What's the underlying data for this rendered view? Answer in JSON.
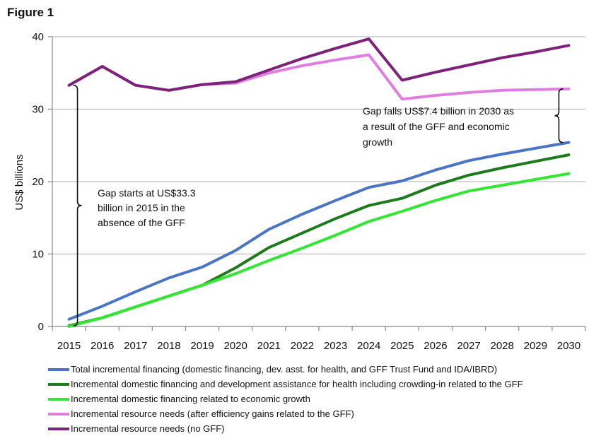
{
  "figure_label": "Figure 1",
  "chart_data": {
    "type": "line",
    "ylabel": "US$ billions",
    "xlabel": "",
    "ylim": [
      0,
      40
    ],
    "yticks": [
      0,
      10,
      20,
      30,
      40
    ],
    "grid": true,
    "legend_position": "bottom",
    "x": [
      "2015",
      "2016",
      "2017",
      "2018",
      "2019",
      "2020",
      "2021",
      "2022",
      "2023",
      "2024",
      "2025",
      "2026",
      "2027",
      "2028",
      "2029",
      "2030"
    ],
    "series": [
      {
        "name": "Total incremental financing (domestic financing, dev. asst. for health, and GFF Trust Fund and IDA/IBRD)",
        "color": "#4a74c4",
        "values": [
          1.0,
          2.8,
          4.8,
          6.7,
          8.2,
          10.5,
          13.4,
          15.5,
          17.4,
          19.2,
          20.1,
          21.6,
          22.9,
          23.8,
          24.6,
          25.4
        ]
      },
      {
        "name": "Incremental domestic financing and development assistance for health including crowding-in related to the GFF",
        "color": "#1d7a1d",
        "values": [
          0.1,
          1.2,
          2.7,
          4.2,
          5.7,
          8.1,
          10.9,
          12.9,
          14.9,
          16.7,
          17.7,
          19.5,
          20.9,
          21.9,
          22.8,
          23.7
        ]
      },
      {
        "name": "Incremental domestic financing related to economic growth",
        "color": "#33e633",
        "values": [
          0.0,
          1.2,
          2.7,
          4.2,
          5.7,
          7.3,
          9.1,
          10.8,
          12.6,
          14.5,
          15.9,
          17.4,
          18.7,
          19.5,
          20.3,
          21.1
        ]
      },
      {
        "name": "Incremental resource needs (after efficiency gains related to the GFF)",
        "color": "#e07ee0",
        "values": [
          33.3,
          35.9,
          33.3,
          32.6,
          33.4,
          33.6,
          35.0,
          36.0,
          36.8,
          37.5,
          31.4,
          31.9,
          32.3,
          32.6,
          32.7,
          32.8
        ]
      },
      {
        "name": "Incremental resource needs (no GFF)",
        "color": "#7d2279",
        "values": [
          33.3,
          35.9,
          33.3,
          32.6,
          33.4,
          33.8,
          35.4,
          37.0,
          38.4,
          39.7,
          34.0,
          35.1,
          36.1,
          37.1,
          37.9,
          38.8
        ]
      }
    ],
    "annotations": [
      {
        "lines": [
          "Gap starts at US$33.3",
          "billion in 2015 in the",
          "absence of the GFF"
        ],
        "bracket_x": "2015",
        "bracket_from": 0.1,
        "bracket_to": 33.3
      },
      {
        "lines": [
          "Gap falls US$7.4 billion in 2030 as",
          "a result of the GFF and economic",
          "growth"
        ],
        "bracket_x": "2030",
        "bracket_from": 25.4,
        "bracket_to": 32.8
      }
    ]
  }
}
